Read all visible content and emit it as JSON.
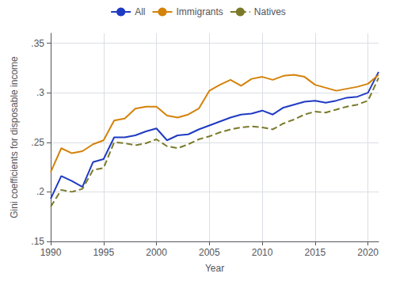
{
  "chart_data": {
    "type": "line",
    "x": [
      1990,
      1991,
      1992,
      1993,
      1994,
      1995,
      1996,
      1997,
      1998,
      1999,
      2000,
      2001,
      2002,
      2003,
      2004,
      2005,
      2006,
      2007,
      2008,
      2009,
      2010,
      2011,
      2012,
      2013,
      2014,
      2015,
      2016,
      2017,
      2018,
      2019,
      2020,
      2021
    ],
    "series": [
      {
        "name": "All",
        "color": "#1F3BC2",
        "line_style": "solid",
        "values": [
          0.193,
          0.216,
          0.211,
          0.205,
          0.23,
          0.233,
          0.255,
          0.255,
          0.257,
          0.261,
          0.264,
          0.252,
          0.257,
          0.258,
          0.263,
          0.267,
          0.271,
          0.275,
          0.278,
          0.279,
          0.282,
          0.278,
          0.285,
          0.288,
          0.291,
          0.292,
          0.29,
          0.292,
          0.295,
          0.296,
          0.3,
          0.321
        ]
      },
      {
        "name": "Immigrants",
        "color": "#D4820A",
        "line_style": "solid",
        "values": [
          0.22,
          0.244,
          0.239,
          0.241,
          0.248,
          0.252,
          0.272,
          0.274,
          0.284,
          0.286,
          0.286,
          0.277,
          0.275,
          0.278,
          0.284,
          0.302,
          0.308,
          0.313,
          0.307,
          0.314,
          0.316,
          0.313,
          0.317,
          0.318,
          0.316,
          0.308,
          0.305,
          0.302,
          0.304,
          0.306,
          0.309,
          0.318
        ]
      },
      {
        "name": "Natives",
        "color": "#7A7A2A",
        "line_style": "dashed",
        "values": [
          0.185,
          0.202,
          0.2,
          0.203,
          0.222,
          0.224,
          0.25,
          0.249,
          0.247,
          0.249,
          0.253,
          0.246,
          0.244,
          0.248,
          0.253,
          0.256,
          0.26,
          0.263,
          0.265,
          0.266,
          0.265,
          0.263,
          0.269,
          0.273,
          0.278,
          0.281,
          0.28,
          0.283,
          0.286,
          0.288,
          0.292,
          0.315
        ]
      }
    ],
    "xlabel": "Year",
    "ylabel": "Gini coefficients for disposable income",
    "xlim": [
      1990,
      2021
    ],
    "xticks": [
      1990,
      1995,
      2000,
      2005,
      2010,
      2015,
      2020
    ],
    "ylim": [
      0.15,
      0.36
    ],
    "yticks": [
      {
        "value": 0.15,
        "label": ".15"
      },
      {
        "value": 0.2,
        "label": ".2"
      },
      {
        "value": 0.25,
        "label": ".25"
      },
      {
        "value": 0.3,
        "label": ".3"
      },
      {
        "value": 0.35,
        "label": ".35"
      }
    ],
    "grid": true,
    "legend": "top"
  }
}
